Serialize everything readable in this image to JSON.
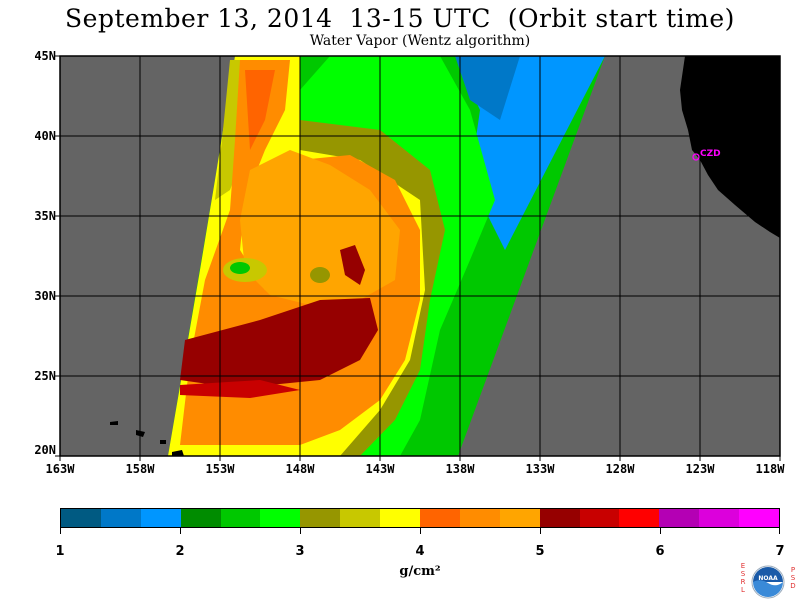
{
  "header": {
    "title": "September 13, 2014  13-15 UTC  (Orbit start time)",
    "subtitle": "Water Vapor (Wentz algorithm)"
  },
  "map": {
    "lat_labels": [
      "45N",
      "40N",
      "35N",
      "30N",
      "25N",
      "20N"
    ],
    "lon_labels": [
      "163W",
      "158W",
      "153W",
      "148W",
      "143W",
      "138W",
      "133W",
      "128W",
      "123W",
      "118W"
    ],
    "station_label": "CZD",
    "colors": {
      "no_data": "#646464",
      "land": "#000000",
      "station": "#ff00ff",
      "grid": "#000000"
    }
  },
  "colorbar": {
    "labels": [
      "1",
      "2",
      "3",
      "4",
      "5",
      "6",
      "7"
    ],
    "unit": "g/cm²",
    "colors": [
      "#005a82",
      "#0078c8",
      "#0096ff",
      "#008c00",
      "#00c800",
      "#00ff00",
      "#969600",
      "#c8c800",
      "#ffff00",
      "#ff6400",
      "#ff8c00",
      "#ffa500",
      "#960000",
      "#c80000",
      "#ff0000",
      "#b400b4",
      "#dc00dc",
      "#ff00ff"
    ]
  },
  "logo": {
    "left_text": "ESRL",
    "right_text": "PSD",
    "center_text": "NOAA"
  }
}
